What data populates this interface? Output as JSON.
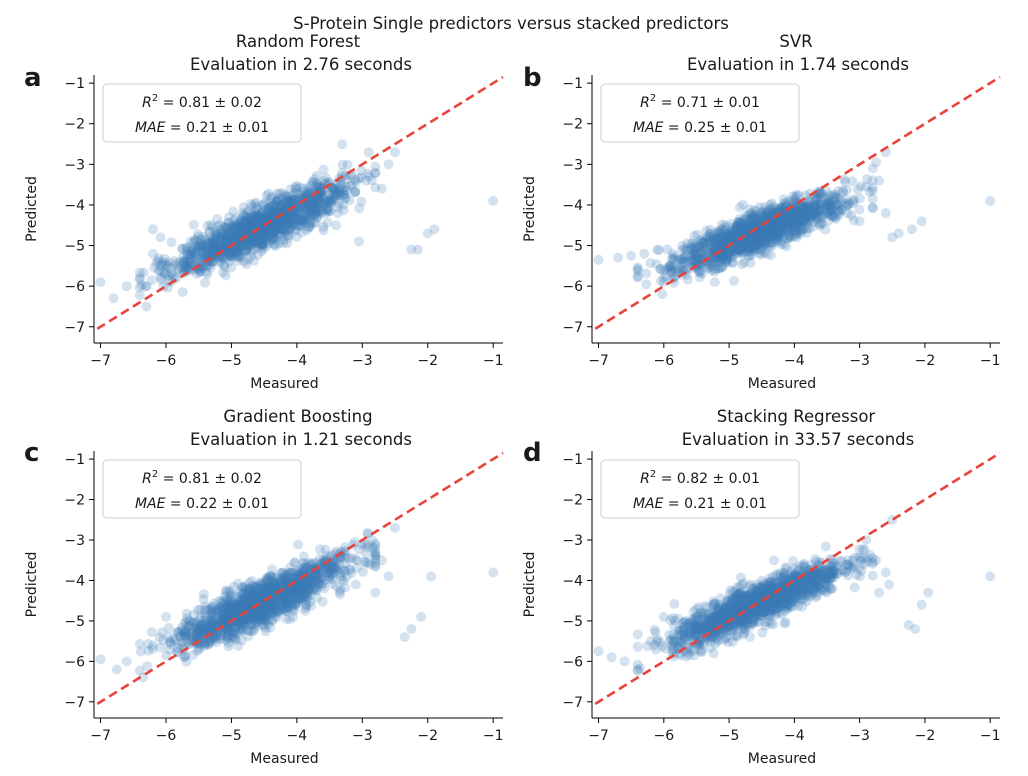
{
  "figure": {
    "suptitle": "S-Protein Single predictors versus stacked predictors"
  },
  "chart_data": [
    {
      "type": "scatter",
      "panel_letter": "a",
      "model": "Random Forest",
      "eval_text": "Evaluation in 2.76 seconds",
      "xlabel": "Measured",
      "ylabel": "Predicted",
      "xlim": [
        -7.1,
        -0.85
      ],
      "ylim": [
        -7.4,
        -0.8
      ],
      "xticks": [
        -7,
        -6,
        -5,
        -4,
        -3,
        -2,
        -1
      ],
      "yticks": [
        -1,
        -2,
        -3,
        -4,
        -5,
        -6,
        -7
      ],
      "xtick_labels": [
        "−7",
        "−6",
        "−5",
        "−4",
        "−3",
        "−2",
        "−1"
      ],
      "ytick_labels": [
        "−1",
        "−2",
        "−3",
        "−4",
        "−5",
        "−6",
        "−7"
      ],
      "annotation": {
        "r2_label": "R",
        "r2_value": "= 0.81 ± 0.02",
        "mae_label": "MAE",
        "mae_value": "= 0.21 ± 0.01"
      },
      "diagonal": "y = x",
      "cloud": {
        "x_center": -4.55,
        "x_spread": 0.65,
        "slope": 0.72,
        "intercept": -1.28,
        "noise": 0.27,
        "n": 1400
      },
      "outliers": [
        [
          -7.0,
          -5.9
        ],
        [
          -6.8,
          -6.3
        ],
        [
          -6.6,
          -6.0
        ],
        [
          -6.3,
          -6.5
        ],
        [
          -6.2,
          -5.2
        ],
        [
          -6.2,
          -4.6
        ],
        [
          -2.9,
          -2.7
        ],
        [
          -2.7,
          -3.6
        ],
        [
          -2.25,
          -5.1
        ],
        [
          -2.15,
          -5.1
        ],
        [
          -2.0,
          -4.7
        ],
        [
          -1.9,
          -4.6
        ],
        [
          -2.5,
          -2.7
        ],
        [
          -1.0,
          -3.9
        ],
        [
          -2.6,
          -3.0
        ],
        [
          -3.4,
          -4.5
        ],
        [
          -3.05,
          -4.9
        ]
      ],
      "diagonal_color": "#e8433b",
      "point_color": "#3b7ab5"
    },
    {
      "type": "scatter",
      "panel_letter": "b",
      "model": "SVR",
      "eval_text": "Evaluation in 1.74 seconds",
      "xlabel": "Measured",
      "ylabel": "Predicted",
      "xlim": [
        -7.1,
        -0.85
      ],
      "ylim": [
        -7.4,
        -0.8
      ],
      "xticks": [
        -7,
        -6,
        -5,
        -4,
        -3,
        -2,
        -1
      ],
      "yticks": [
        -1,
        -2,
        -3,
        -4,
        -5,
        -6,
        -7
      ],
      "xtick_labels": [
        "−7",
        "−6",
        "−5",
        "−4",
        "−3",
        "−2",
        "−1"
      ],
      "ytick_labels": [
        "−1",
        "−2",
        "−3",
        "−4",
        "−5",
        "−6",
        "−7"
      ],
      "annotation": {
        "r2_label": "R",
        "r2_value": "= 0.71 ± 0.01",
        "mae_label": "MAE",
        "mae_value": "= 0.25 ± 0.01"
      },
      "diagonal": "y = x",
      "cloud": {
        "x_center": -4.55,
        "x_spread": 0.65,
        "slope": 0.62,
        "intercept": -1.85,
        "noise": 0.24,
        "n": 1400
      },
      "outliers": [
        [
          -7.0,
          -5.35
        ],
        [
          -6.7,
          -5.3
        ],
        [
          -6.5,
          -5.25
        ],
        [
          -6.3,
          -5.2
        ],
        [
          -6.1,
          -5.1
        ],
        [
          -2.8,
          -3.1
        ],
        [
          -2.7,
          -3.4
        ],
        [
          -2.6,
          -4.2
        ],
        [
          -2.4,
          -4.7
        ],
        [
          -2.2,
          -4.6
        ],
        [
          -2.05,
          -4.4
        ],
        [
          -1.0,
          -3.9
        ],
        [
          -2.5,
          -4.8
        ],
        [
          -2.75,
          -2.95
        ],
        [
          -2.6,
          -2.7
        ],
        [
          -3.0,
          -4.4
        ]
      ],
      "diagonal_color": "#e8433b",
      "point_color": "#3b7ab5"
    },
    {
      "type": "scatter",
      "panel_letter": "c",
      "model": "Gradient Boosting",
      "eval_text": "Evaluation in 1.21 seconds",
      "xlabel": "Measured",
      "ylabel": "Predicted",
      "xlim": [
        -7.1,
        -0.85
      ],
      "ylim": [
        -7.4,
        -0.8
      ],
      "xticks": [
        -7,
        -6,
        -5,
        -4,
        -3,
        -2,
        -1
      ],
      "yticks": [
        -1,
        -2,
        -3,
        -4,
        -5,
        -6,
        -7
      ],
      "xtick_labels": [
        "−7",
        "−6",
        "−5",
        "−4",
        "−3",
        "−2",
        "−1"
      ],
      "ytick_labels": [
        "−1",
        "−2",
        "−3",
        "−4",
        "−5",
        "−6",
        "−7"
      ],
      "annotation": {
        "r2_label": "R",
        "r2_value": "= 0.81 ± 0.02",
        "mae_label": "MAE",
        "mae_value": "= 0.22 ± 0.01"
      },
      "diagonal": "y = x",
      "cloud": {
        "x_center": -4.55,
        "x_spread": 0.65,
        "slope": 0.72,
        "intercept": -1.28,
        "noise": 0.27,
        "n": 1400
      },
      "outliers": [
        [
          -7.0,
          -5.95
        ],
        [
          -6.75,
          -6.2
        ],
        [
          -6.6,
          -6.0
        ],
        [
          -6.35,
          -6.4
        ],
        [
          -6.2,
          -5.6
        ],
        [
          -6.0,
          -4.9
        ],
        [
          -2.85,
          -3.0
        ],
        [
          -2.7,
          -3.5
        ],
        [
          -2.5,
          -2.7
        ],
        [
          -2.35,
          -5.4
        ],
        [
          -2.25,
          -5.2
        ],
        [
          -2.1,
          -4.9
        ],
        [
          -1.95,
          -3.9
        ],
        [
          -1.0,
          -3.8
        ],
        [
          -2.6,
          -3.9
        ],
        [
          -3.1,
          -4.1
        ],
        [
          -2.8,
          -4.3
        ]
      ],
      "diagonal_color": "#e8433b",
      "point_color": "#3b7ab5"
    },
    {
      "type": "scatter",
      "panel_letter": "d",
      "model": "Stacking Regressor",
      "eval_text": "Evaluation in 33.57 seconds",
      "xlabel": "Measured",
      "ylabel": "Predicted",
      "xlim": [
        -7.1,
        -0.85
      ],
      "ylim": [
        -7.4,
        -0.8
      ],
      "xticks": [
        -7,
        -6,
        -5,
        -4,
        -3,
        -2,
        -1
      ],
      "yticks": [
        -1,
        -2,
        -3,
        -4,
        -5,
        -6,
        -7
      ],
      "xtick_labels": [
        "−7",
        "−6",
        "−5",
        "−4",
        "−3",
        "−2",
        "−1"
      ],
      "ytick_labels": [
        "−1",
        "−2",
        "−3",
        "−4",
        "−5",
        "−6",
        "−7"
      ],
      "annotation": {
        "r2_label": "R",
        "r2_value": "= 0.82 ± 0.01",
        "mae_label": "MAE",
        "mae_value": "= 0.21 ± 0.01"
      },
      "diagonal": "y = x",
      "cloud": {
        "x_center": -4.55,
        "x_spread": 0.65,
        "slope": 0.7,
        "intercept": -1.38,
        "noise": 0.25,
        "n": 1400
      },
      "outliers": [
        [
          -7.0,
          -5.75
        ],
        [
          -6.8,
          -5.9
        ],
        [
          -6.6,
          -6.0
        ],
        [
          -6.4,
          -6.2
        ],
        [
          -6.2,
          -5.5
        ],
        [
          -6.0,
          -4.9
        ],
        [
          -2.9,
          -3.0
        ],
        [
          -2.75,
          -3.5
        ],
        [
          -2.6,
          -3.8
        ],
        [
          -2.55,
          -4.1
        ],
        [
          -2.25,
          -5.1
        ],
        [
          -2.15,
          -5.2
        ],
        [
          -2.05,
          -4.6
        ],
        [
          -1.95,
          -4.3
        ],
        [
          -1.0,
          -3.9
        ],
        [
          -2.5,
          -2.5
        ],
        [
          -2.7,
          -4.3
        ]
      ],
      "diagonal_color": "#e8433b",
      "point_color": "#3b7ab5"
    }
  ]
}
